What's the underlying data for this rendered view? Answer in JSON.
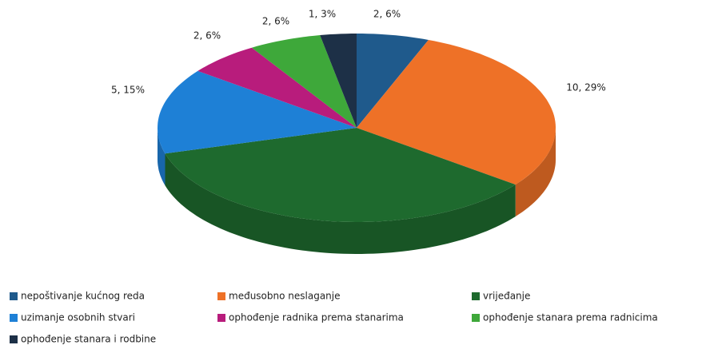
{
  "chart_data": {
    "type": "pie3d",
    "categories": [
      "nepoštivanje kućnog reda",
      "međusobno neslaganje",
      "vrijeđanje",
      "uzimanje osobnih stvari",
      "ophođenje radnika prema stanarima",
      "ophođenje stanara prema radnicima",
      "ophođenje stanara i rodbine"
    ],
    "values": [
      2,
      10,
      12,
      5,
      2,
      2,
      1
    ],
    "value_labels": [
      "2, 6%",
      "10, 29%",
      null,
      "5, 15%",
      "2, 6%",
      "2, 6%",
      "1, 3%"
    ],
    "colors": [
      "#1f5a8c",
      "#ee7127",
      "#1e6a2e",
      "#1e80d6",
      "#b81c7c",
      "#3ea83a",
      "#1d3047"
    ],
    "legend": "bottom"
  }
}
